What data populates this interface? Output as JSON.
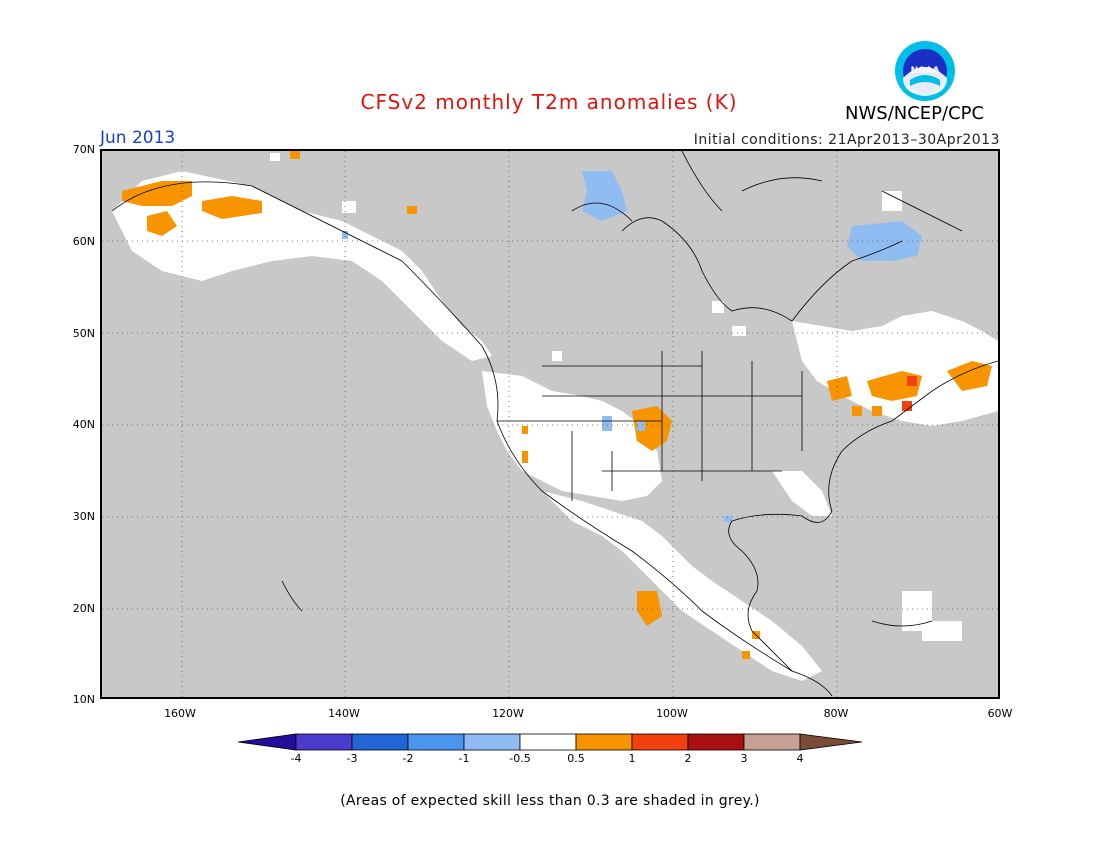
{
  "title": "CFSv2 monthly T2m anomalies (K)",
  "month": "Jun 2013",
  "initial_conditions": "Initial conditions: 21Apr2013–30Apr2013",
  "agency": "NWS/NCEP/CPC",
  "logo_text": "NOAA",
  "footnote": "(Areas of expected skill less than 0.3 are shaded in grey.)",
  "lat_labels": [
    "70N",
    "60N",
    "50N",
    "40N",
    "30N",
    "20N",
    "10N"
  ],
  "lon_labels": [
    "160W",
    "140W",
    "120W",
    "100W",
    "80W",
    "60W"
  ],
  "colorbar": {
    "labels": [
      "-4",
      "-3",
      "-2",
      "-1",
      "-0.5",
      "0.5",
      "1",
      "2",
      "3",
      "4"
    ],
    "colors": {
      "lt_-4": "#230d9c",
      "-4_-3": "#4b3bcc",
      "-3_-2": "#2365d6",
      "-2_-1": "#4a95ee",
      "-1_-0.5": "#8fbdf2",
      "-0.5_0.5": "#ffffff",
      "0.5_1": "#f79400",
      "1_2": "#f2400f",
      "2_3": "#a8110f",
      "3_4": "#c7a194",
      "gt_4": "#7a4b37"
    }
  },
  "colors": {
    "low_skill_grey": "#c8c8c8",
    "title_red": "#e0140f",
    "month_blue": "#1a3fd0"
  },
  "map": {
    "region": "North America",
    "lat_range": [
      10,
      70
    ],
    "lon_range": [
      -170,
      -60
    ],
    "projection": "equirectangular",
    "grid": "dotted 10-degree"
  }
}
